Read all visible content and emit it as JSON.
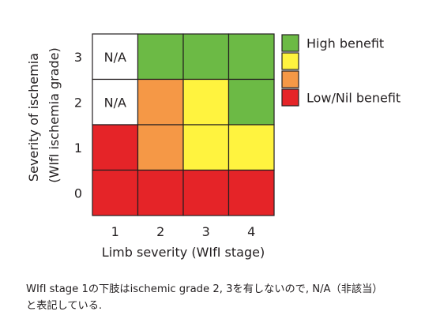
{
  "chart_data": {
    "type": "heatmap",
    "xlabel": "Limb severity (WIfI stage)",
    "ylabel_lines": [
      "Severity of ischemia",
      "(WIfI ischemia grade)"
    ],
    "x_categories": [
      "1",
      "2",
      "3",
      "4"
    ],
    "y_categories": [
      "0",
      "1",
      "2",
      "3"
    ],
    "benefit_levels": [
      "low_nil",
      "moderate_low",
      "moderate_high",
      "high",
      "na"
    ],
    "grid": [
      {
        "ischemia_grade": "3",
        "values": [
          "na",
          "high",
          "high",
          "high"
        ]
      },
      {
        "ischemia_grade": "2",
        "values": [
          "na",
          "moderate_low",
          "moderate_high",
          "high"
        ]
      },
      {
        "ischemia_grade": "1",
        "values": [
          "low_nil",
          "moderate_low",
          "moderate_high",
          "moderate_high"
        ]
      },
      {
        "ischemia_grade": "0",
        "values": [
          "low_nil",
          "low_nil",
          "low_nil",
          "low_nil"
        ]
      }
    ],
    "na_label": "N/A",
    "colors": {
      "high": "#6cba45",
      "moderate_high": "#fff33f",
      "moderate_low": "#f59846",
      "low_nil": "#e52428",
      "na": "#ffffff",
      "border": "#231f20"
    },
    "legend": {
      "position": "right",
      "entries": [
        {
          "level": "high",
          "label": "High benefit"
        },
        {
          "level": "moderate_high",
          "label": ""
        },
        {
          "level": "moderate_low",
          "label": ""
        },
        {
          "level": "low_nil",
          "label": "Low/Nil benefit"
        }
      ]
    }
  },
  "note": "WIfI stage 1の下肢はischemic grade 2, 3を有しないので, N/A（非該当）\nと表記している."
}
